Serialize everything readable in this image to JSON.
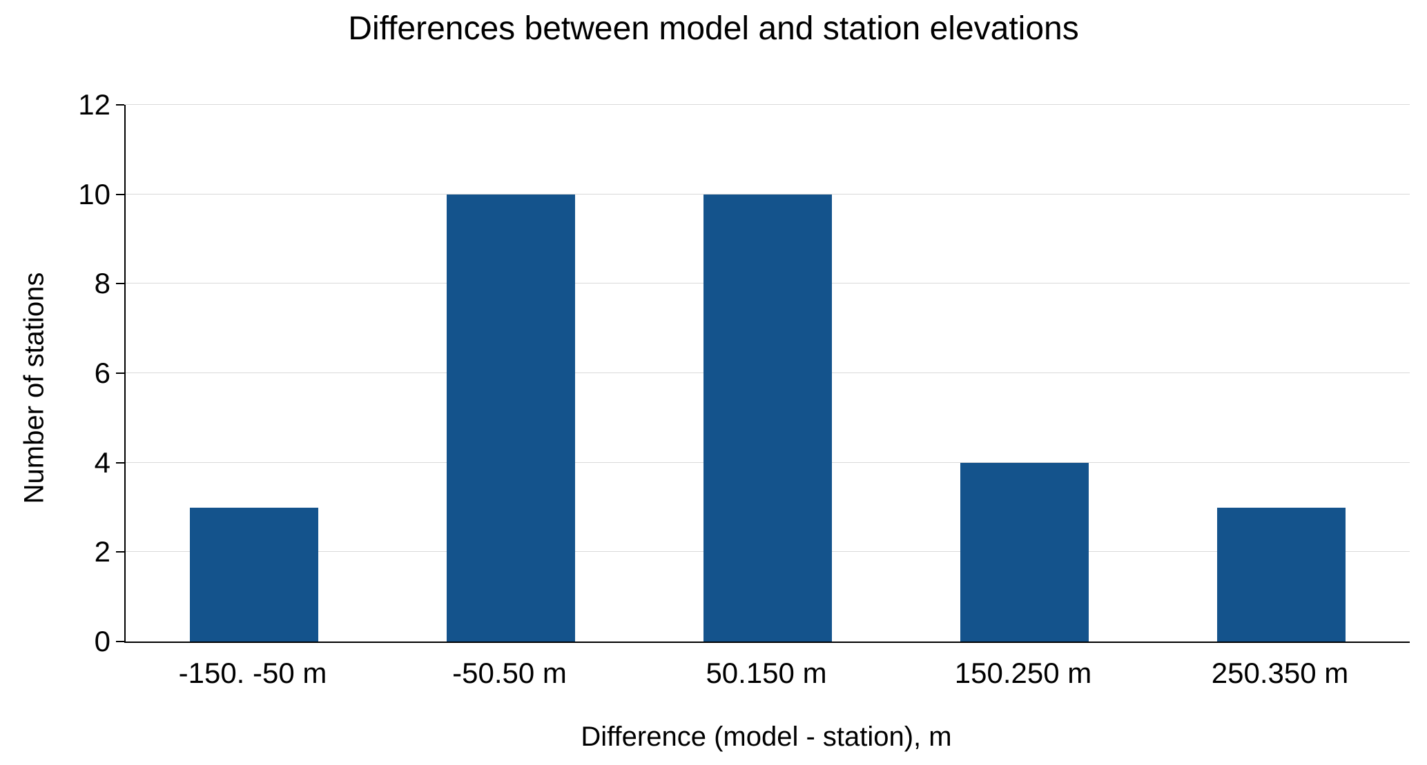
{
  "chart_data": {
    "type": "bar",
    "title": "Differences between model and station elevations",
    "categories": [
      "-150. -50 m",
      "-50.50 m",
      "50.150 m",
      "150.250 m",
      "250.350 m"
    ],
    "values": [
      3,
      10,
      10,
      4,
      3
    ],
    "xlabel": "Difference (model - station), m",
    "ylabel": "Number of stations",
    "ylim": [
      0,
      12
    ],
    "yticks": [
      0,
      2,
      4,
      6,
      8,
      10,
      12
    ],
    "grid": "horizontal",
    "legend": "none",
    "bar_color": "#14538C",
    "gridline_color": "#d9d9d9",
    "axis_color": "#000000",
    "background_color": "#ffffff"
  }
}
